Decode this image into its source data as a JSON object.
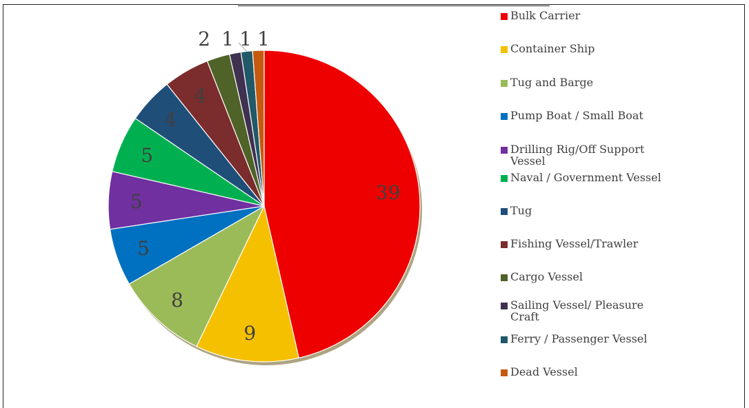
{
  "chart_data": {
    "type": "pie",
    "title": "",
    "legend_position": "right",
    "slices": [
      {
        "label": "Bulk Carrier",
        "value": 39,
        "color": "#ef0000"
      },
      {
        "label": "Container Ship",
        "value": 9,
        "color": "#f5c000"
      },
      {
        "label": "Tug and Barge",
        "value": 8,
        "color": "#9bbb59"
      },
      {
        "label": "Pump Boat / Small Boat",
        "value": 5,
        "color": "#0070c0"
      },
      {
        "label": "Drilling Rig/Off Support Vessel",
        "value": 5,
        "color": "#7030a0"
      },
      {
        "label": "Naval / Government Vessel",
        "value": 5,
        "color": "#00b050"
      },
      {
        "label": "Tug",
        "value": 4,
        "color": "#1f4e79"
      },
      {
        "label": "Fishing Vessel/Trawler",
        "value": 4,
        "color": "#7b2c2c"
      },
      {
        "label": "Cargo Vessel",
        "value": 2,
        "color": "#4f6228"
      },
      {
        "label": "Sailing Vessel/ Pleasure Craft",
        "value": 1,
        "color": "#403151"
      },
      {
        "label": "Ferry / Passenger Vessel",
        "value": 1,
        "color": "#215968"
      },
      {
        "label": "Dead Vessel",
        "value": 1,
        "color": "#c55a11"
      }
    ]
  }
}
